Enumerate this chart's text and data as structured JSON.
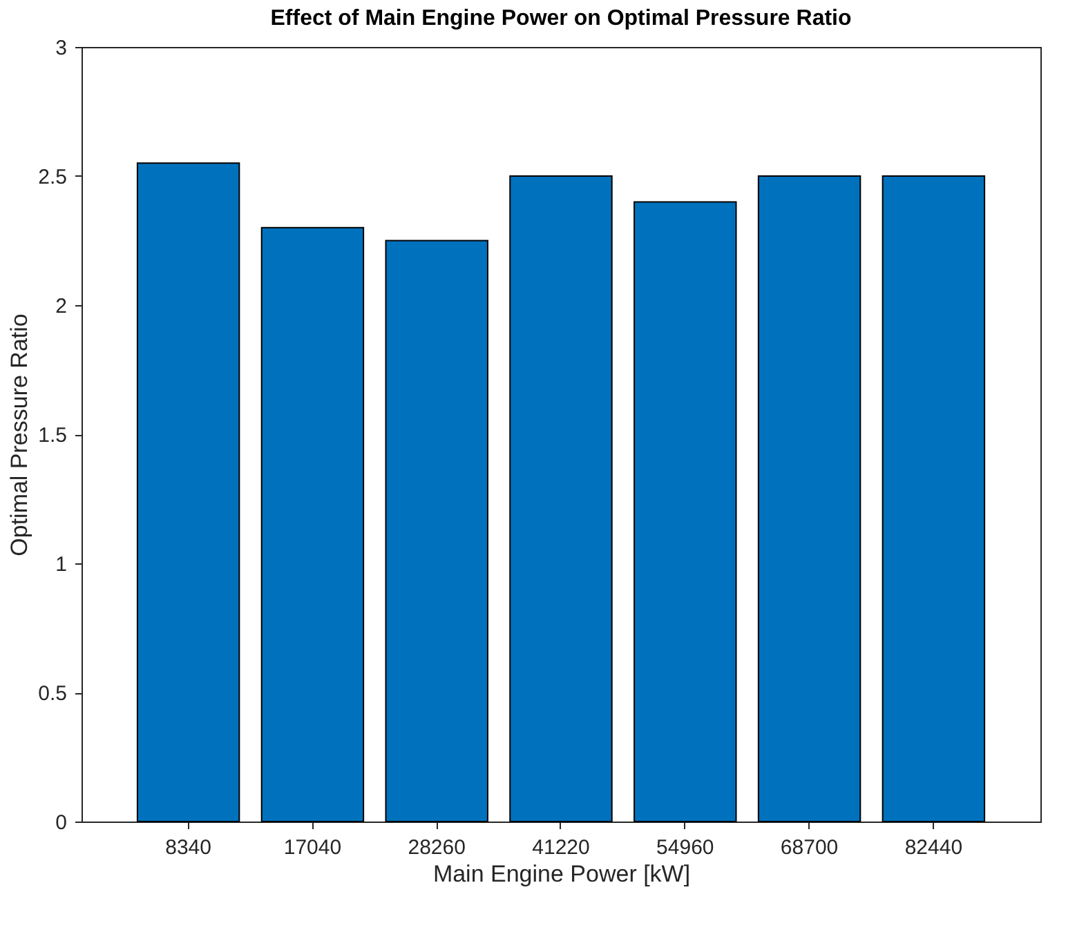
{
  "chart_data": {
    "type": "bar",
    "title": "Effect of Main Engine Power on Optimal Pressure Ratio",
    "xlabel": "Main Engine Power [kW]",
    "ylabel": "Optimal Pressure Ratio",
    "categories": [
      "8340",
      "17040",
      "28260",
      "41220",
      "54960",
      "68700",
      "82440"
    ],
    "values": [
      2.55,
      2.3,
      2.25,
      2.5,
      2.4,
      2.5,
      2.5
    ],
    "color": "#0072bd",
    "ylim": [
      0,
      3
    ],
    "yticks": [
      0,
      0.5,
      1,
      1.5,
      2,
      2.5,
      3
    ],
    "grid": false
  }
}
